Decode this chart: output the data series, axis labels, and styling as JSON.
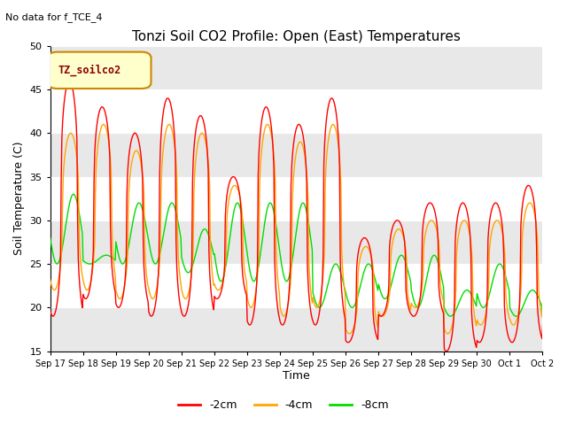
{
  "title": "Tonzi Soil CO2 Profile: Open (East) Temperatures",
  "subtitle": "No data for f_TCE_4",
  "ylabel": "Soil Temperature (C)",
  "xlabel": "Time",
  "ylim": [
    15,
    50
  ],
  "yticks": [
    15,
    20,
    25,
    30,
    35,
    40,
    45,
    50
  ],
  "xtick_labels": [
    "Sep 17",
    "Sep 18",
    "Sep 19",
    "Sep 20",
    "Sep 21",
    "Sep 22",
    "Sep 23",
    "Sep 24",
    "Sep 25",
    "Sep 26",
    "Sep 27",
    "Sep 28",
    "Sep 29",
    "Sep 30",
    "Oct 1",
    "Oct 2"
  ],
  "legend_label": "TZ_soilco2",
  "series_labels": [
    "-2cm",
    "-4cm",
    "-8cm"
  ],
  "series_colors": [
    "#ff0000",
    "#ffa500",
    "#00dd00"
  ],
  "plot_bg": "#ffffff",
  "band_color": "#e8e8e8",
  "figsize": [
    6.4,
    4.8
  ],
  "dpi": 100
}
